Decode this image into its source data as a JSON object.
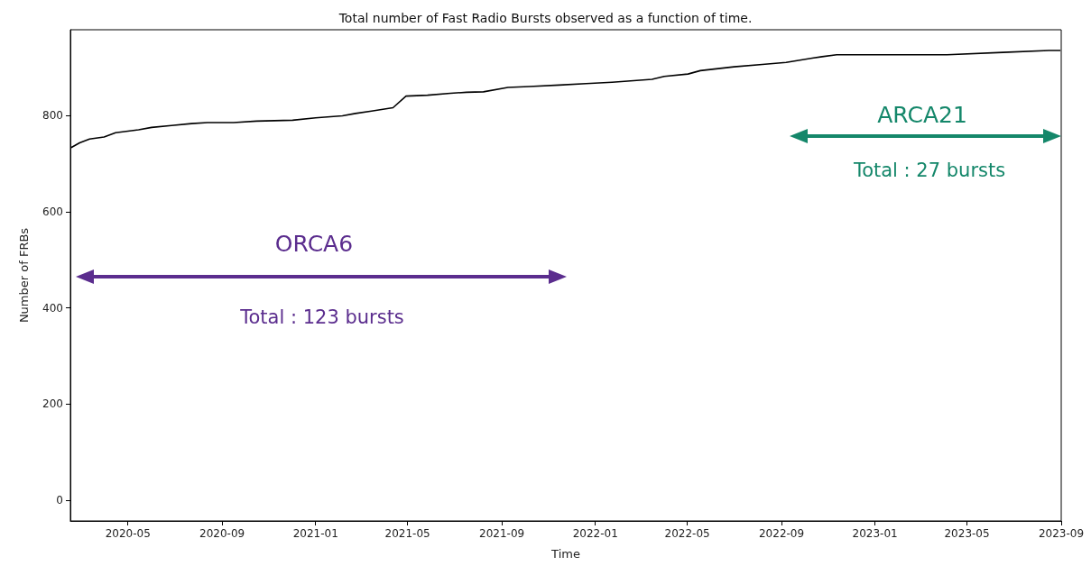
{
  "chart_data": {
    "type": "line",
    "title": "Total number of Fast Radio Bursts observed as a function of time.",
    "xlabel": "Time",
    "ylabel": "Number of FRBs",
    "x": [
      "2020-02-17",
      "2020-02-28",
      "2020-03-12",
      "2020-03-31",
      "2020-04-15",
      "2020-05-15",
      "2020-06-01",
      "2020-06-27",
      "2020-07-23",
      "2020-08-13",
      "2020-09-16",
      "2020-10-16",
      "2020-12-02",
      "2021-01-01",
      "2021-02-05",
      "2021-02-22",
      "2021-03-15",
      "2021-04-12",
      "2021-04-29",
      "2021-05-27",
      "2021-06-26",
      "2021-07-17",
      "2021-08-08",
      "2021-09-09",
      "2021-10-07",
      "2021-11-15",
      "2021-12-20",
      "2022-01-23",
      "2022-03-16",
      "2022-04-01",
      "2022-05-02",
      "2022-05-18",
      "2022-07-01",
      "2022-08-07",
      "2022-09-07",
      "2022-10-11",
      "2022-10-24",
      "2022-11-12",
      "2022-12-27",
      "2023-04-05",
      "2023-06-17",
      "2023-08-16",
      "2023-08-31"
    ],
    "series": [
      {
        "color": "#000000",
        "values": [
          733,
          743,
          751,
          755,
          764,
          770,
          775,
          779,
          783,
          785,
          785,
          788,
          790,
          795,
          799,
          804,
          809,
          816,
          840,
          842,
          846,
          848,
          849,
          858,
          860,
          863,
          866,
          869,
          875,
          881,
          886,
          893,
          901,
          906,
          910,
          919,
          922,
          926,
          926,
          926,
          931,
          935,
          935
        ]
      }
    ],
    "xlim": [
      "2020-02-16",
      "2023-09-01"
    ],
    "xticks": [
      "2020-05",
      "2020-09",
      "2021-01",
      "2021-05",
      "2021-09",
      "2022-01",
      "2022-05",
      "2022-09",
      "2023-01",
      "2023-05",
      "2023-09"
    ],
    "ylim": [
      -43,
      978
    ],
    "yticks": [
      0,
      200,
      400,
      600,
      800
    ],
    "marker": "none",
    "line_style": "solid",
    "annotations": [
      "ORCA6",
      "Total : 123 bursts",
      "ARCA21",
      "Total : 27 bursts"
    ]
  }
}
